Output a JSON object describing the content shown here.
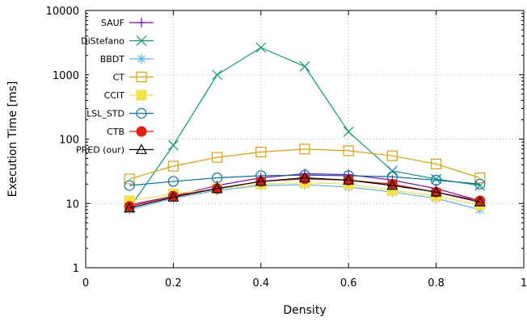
{
  "chart_data": {
    "type": "line",
    "xlabel": "Density",
    "ylabel": "Execution Time [ms]",
    "xlim": [
      0,
      1
    ],
    "ylim": [
      1,
      10000
    ],
    "yscale": "log",
    "x_ticks": [
      0,
      0.2,
      0.4,
      0.6,
      0.8,
      1
    ],
    "x_tick_labels": [
      "0",
      "0.2",
      "0.4",
      "0.6",
      "0.8",
      "1"
    ],
    "y_ticks": [
      1,
      10,
      100,
      1000,
      10000
    ],
    "y_tick_labels": [
      "1",
      "10",
      "100",
      "1000",
      "10000"
    ],
    "grid": true,
    "legend_position": "top-left",
    "x": [
      0.1,
      0.2,
      0.3,
      0.4,
      0.5,
      0.6,
      0.7,
      0.8,
      0.9
    ],
    "series": [
      {
        "name": "SAUF",
        "color": "#9400d3",
        "marker": "plus",
        "values": [
          9.5,
          13,
          19,
          25,
          29,
          28,
          23,
          17,
          11
        ]
      },
      {
        "name": "DiStefano",
        "color": "#009e73",
        "marker": "cross",
        "values": [
          8.5,
          80,
          1000,
          2650,
          1350,
          130,
          32,
          24,
          19
        ]
      },
      {
        "name": "BBDT",
        "color": "#56b4e9",
        "marker": "star",
        "values": [
          8,
          12,
          16,
          19,
          19.5,
          18,
          15,
          12,
          8
        ]
      },
      {
        "name": "CT",
        "color": "#e69f00",
        "marker": "open-square",
        "values": [
          24,
          38,
          52,
          63,
          70,
          66,
          55,
          41,
          25
        ]
      },
      {
        "name": "CCIT",
        "color": "#f0e442",
        "marker": "filled-square",
        "values": [
          11,
          14,
          17,
          20,
          21,
          20,
          16,
          13,
          9.5
        ]
      },
      {
        "name": "LSL_STD",
        "color": "#0072b2",
        "marker": "open-circle",
        "values": [
          19,
          22,
          25,
          27,
          27.5,
          27,
          26,
          23,
          20
        ]
      },
      {
        "name": "CTB",
        "color": "#e51e10",
        "marker": "filled-circle",
        "values": [
          9,
          13,
          17,
          22,
          24,
          23,
          20,
          15,
          11
        ]
      },
      {
        "name": "PRED (our)",
        "color": "#000000",
        "marker": "open-triangle",
        "values": [
          8.5,
          12.5,
          17,
          22,
          25,
          23,
          19,
          15,
          10.5
        ]
      }
    ]
  }
}
